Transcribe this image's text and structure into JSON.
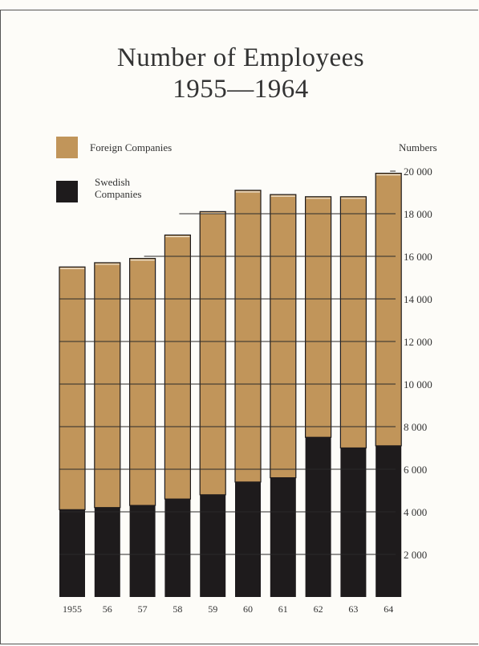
{
  "colors": {
    "foreign": "#c1955a",
    "swedish": "#1e1b1c",
    "gridline": "#2a2a2a"
  },
  "chart_data": {
    "type": "bar",
    "stacked": true,
    "title": "Number of Employees",
    "subtitle": "1955—1964",
    "ylabel": "Numbers",
    "categories": [
      "1955",
      "56",
      "57",
      "58",
      "59",
      "60",
      "61",
      "62",
      "63",
      "64"
    ],
    "series": [
      {
        "name": "Swedish Companies",
        "values": [
          4100,
          4200,
          4300,
          4600,
          4800,
          5400,
          5600,
          7500,
          7000,
          7100
        ]
      },
      {
        "name": "Foreign Companies",
        "values": [
          11400,
          11500,
          11600,
          12400,
          13300,
          13700,
          13300,
          11300,
          11800,
          12800
        ]
      }
    ],
    "ylim": [
      0,
      20000
    ],
    "yticks": [
      2000,
      4000,
      6000,
      8000,
      10000,
      12000,
      14000,
      16000,
      18000,
      20000
    ],
    "ytick_labels": [
      "2 000",
      "4 000",
      "6 000",
      "8 000",
      "10 000",
      "12 000",
      "14 000",
      "16 000",
      "18 000",
      "20 000"
    ],
    "grid": true,
    "legend_position": "top-left"
  }
}
